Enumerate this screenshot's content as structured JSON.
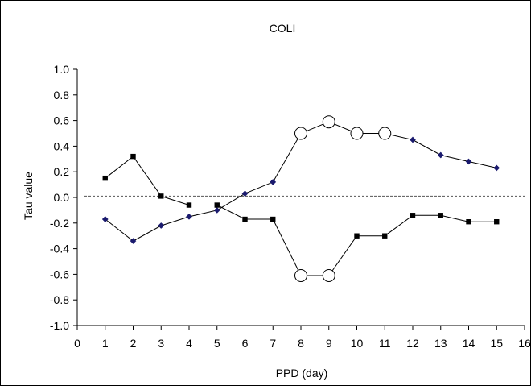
{
  "chart_data": {
    "type": "line",
    "title": "COLI",
    "xlabel": "PPD (day)",
    "ylabel": "Tau value",
    "xlim": [
      0,
      16
    ],
    "ylim": [
      -1.0,
      1.0
    ],
    "x_ticks": [
      "0",
      "1",
      "2",
      "3",
      "4",
      "5",
      "6",
      "7",
      "8",
      "9",
      "10",
      "11",
      "12",
      "13",
      "14",
      "15",
      "16"
    ],
    "y_ticks": [
      "1.0",
      "0.8",
      "0.6",
      "0.4",
      "0.2",
      "0.0",
      "-0.2",
      "-0.4",
      "-0.6",
      "-0.8",
      "-1.0"
    ],
    "reference_line": 0.01,
    "grid": false,
    "legend": "none",
    "series": [
      {
        "marker": "diamond",
        "color": "#1a1a6e",
        "x": [
          1,
          2,
          3,
          4,
          5,
          6,
          7,
          8,
          9,
          10,
          11,
          12,
          13,
          14,
          15
        ],
        "y": [
          -0.17,
          -0.34,
          -0.22,
          -0.15,
          -0.1,
          0.03,
          0.12,
          0.5,
          0.59,
          0.5,
          0.5,
          0.45,
          0.33,
          0.28,
          0.23
        ],
        "highlight": [
          false,
          false,
          false,
          false,
          false,
          false,
          false,
          true,
          true,
          true,
          true,
          false,
          false,
          false,
          false
        ]
      },
      {
        "marker": "square",
        "color": "#000000",
        "x": [
          1,
          2,
          3,
          4,
          5,
          6,
          7,
          8,
          9,
          10,
          11,
          12,
          13,
          14,
          15
        ],
        "y": [
          0.15,
          0.32,
          0.01,
          -0.06,
          -0.06,
          -0.17,
          -0.17,
          -0.61,
          -0.61,
          -0.3,
          -0.3,
          -0.14,
          -0.14,
          -0.19,
          -0.19
        ],
        "highlight": [
          false,
          false,
          false,
          false,
          false,
          false,
          false,
          true,
          true,
          false,
          false,
          false,
          false,
          false,
          false
        ]
      }
    ]
  }
}
